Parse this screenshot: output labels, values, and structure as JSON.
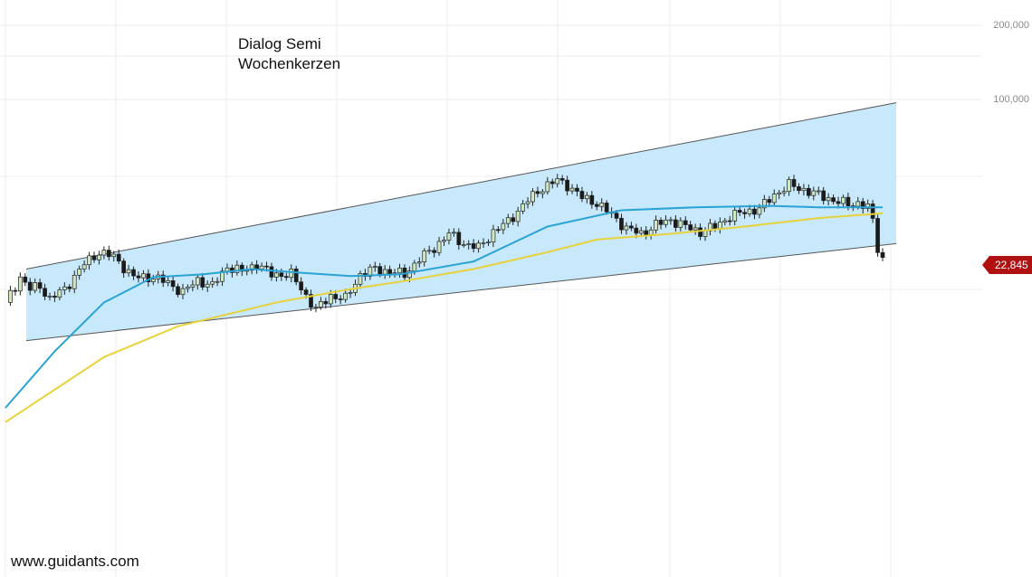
{
  "title_lines": [
    "Dialog Semi",
    "Wochenkerzen"
  ],
  "watermark": "www.guidants.com",
  "colors": {
    "channel_fill": "#c8e8fb",
    "channel_line": "#555555",
    "ma_fast": "#2aa3d6",
    "ma_slow": "#e8d23a",
    "candle_up": "#cfe8c0",
    "candle_down": "#1a1a1a",
    "price_tag": "#b01010",
    "grid": "#ececec"
  },
  "chart_data": {
    "type": "candlestick",
    "title": "Dialog Semi",
    "subtitle": "Wochenkerzen",
    "y_scale": "log",
    "y_ticks": [
      {
        "value": 200,
        "label": "200,000"
      },
      {
        "value": 100,
        "label": "100,000"
      }
    ],
    "last_price": {
      "value": 22.845,
      "label": "22,845"
    },
    "price_path": [
      [
        0,
        15.0
      ],
      [
        3,
        19.0
      ],
      [
        5,
        17.0
      ],
      [
        7,
        17.5
      ],
      [
        9,
        15.5
      ],
      [
        12,
        17.0
      ],
      [
        16,
        21.5
      ],
      [
        19,
        24.0
      ],
      [
        22,
        23.0
      ],
      [
        26,
        19.0
      ],
      [
        30,
        19.0
      ],
      [
        33,
        18.0
      ],
      [
        36,
        16.5
      ],
      [
        39,
        18.5
      ],
      [
        42,
        17.5
      ],
      [
        45,
        21.0
      ],
      [
        48,
        20.0
      ],
      [
        51,
        21.5
      ],
      [
        54,
        19.5
      ],
      [
        58,
        19.5
      ],
      [
        61,
        16.0
      ],
      [
        63,
        14.0
      ],
      [
        66,
        16.0
      ],
      [
        69,
        15.5
      ],
      [
        72,
        19.5
      ],
      [
        75,
        20.5
      ],
      [
        78,
        20.0
      ],
      [
        81,
        19.5
      ],
      [
        84,
        22.5
      ],
      [
        87,
        25.0
      ],
      [
        90,
        28.5
      ],
      [
        93,
        26.0
      ],
      [
        96,
        25.0
      ],
      [
        99,
        29.0
      ],
      [
        102,
        32.0
      ],
      [
        106,
        39.0
      ],
      [
        109,
        44.0
      ],
      [
        112,
        47.0
      ],
      [
        114,
        45.0
      ],
      [
        117,
        40.0
      ],
      [
        120,
        38.0
      ],
      [
        123,
        34.0
      ],
      [
        126,
        30.0
      ],
      [
        129,
        28.5
      ],
      [
        132,
        31.0
      ],
      [
        135,
        32.5
      ],
      [
        138,
        30.5
      ],
      [
        141,
        29.0
      ],
      [
        144,
        30.5
      ],
      [
        147,
        33.5
      ],
      [
        150,
        35.0
      ],
      [
        153,
        36.0
      ],
      [
        156,
        41.0
      ],
      [
        159,
        45.0
      ],
      [
        162,
        43.0
      ],
      [
        165,
        41.0
      ],
      [
        168,
        39.0
      ],
      [
        171,
        37.5
      ],
      [
        173,
        38.0
      ],
      [
        175,
        36.5
      ],
      [
        176,
        32.0
      ],
      [
        177,
        25.0
      ],
      [
        178,
        22.845
      ]
    ],
    "series": [
      {
        "type": "line",
        "values": [
          [
            0,
            5.6
          ],
          [
            10,
            9.5
          ],
          [
            20,
            15.0
          ],
          [
            30,
            19.0
          ],
          [
            40,
            19.5
          ],
          [
            50,
            20.5
          ],
          [
            60,
            19.8
          ],
          [
            70,
            19.2
          ],
          [
            80,
            19.5
          ],
          [
            95,
            22.0
          ],
          [
            110,
            30.5
          ],
          [
            125,
            35.5
          ],
          [
            140,
            36.5
          ],
          [
            155,
            37.0
          ],
          [
            165,
            36.5
          ],
          [
            178,
            36.5
          ]
        ]
      },
      {
        "type": "line",
        "values": [
          [
            0,
            4.9
          ],
          [
            20,
            9.0
          ],
          [
            35,
            12.0
          ],
          [
            55,
            15.0
          ],
          [
            70,
            17.0
          ],
          [
            80,
            18.2
          ],
          [
            95,
            20.5
          ],
          [
            110,
            24.0
          ],
          [
            120,
            27.0
          ],
          [
            135,
            28.5
          ],
          [
            150,
            30.5
          ],
          [
            165,
            33.0
          ],
          [
            178,
            34.5
          ]
        ]
      }
    ],
    "channel": {
      "upper": [
        [
          0,
          20.5
        ],
        [
          176,
          97.0
        ]
      ],
      "lower": [
        [
          0,
          10.5
        ],
        [
          176,
          26.0
        ]
      ]
    },
    "legend": "none",
    "grid": true
  }
}
